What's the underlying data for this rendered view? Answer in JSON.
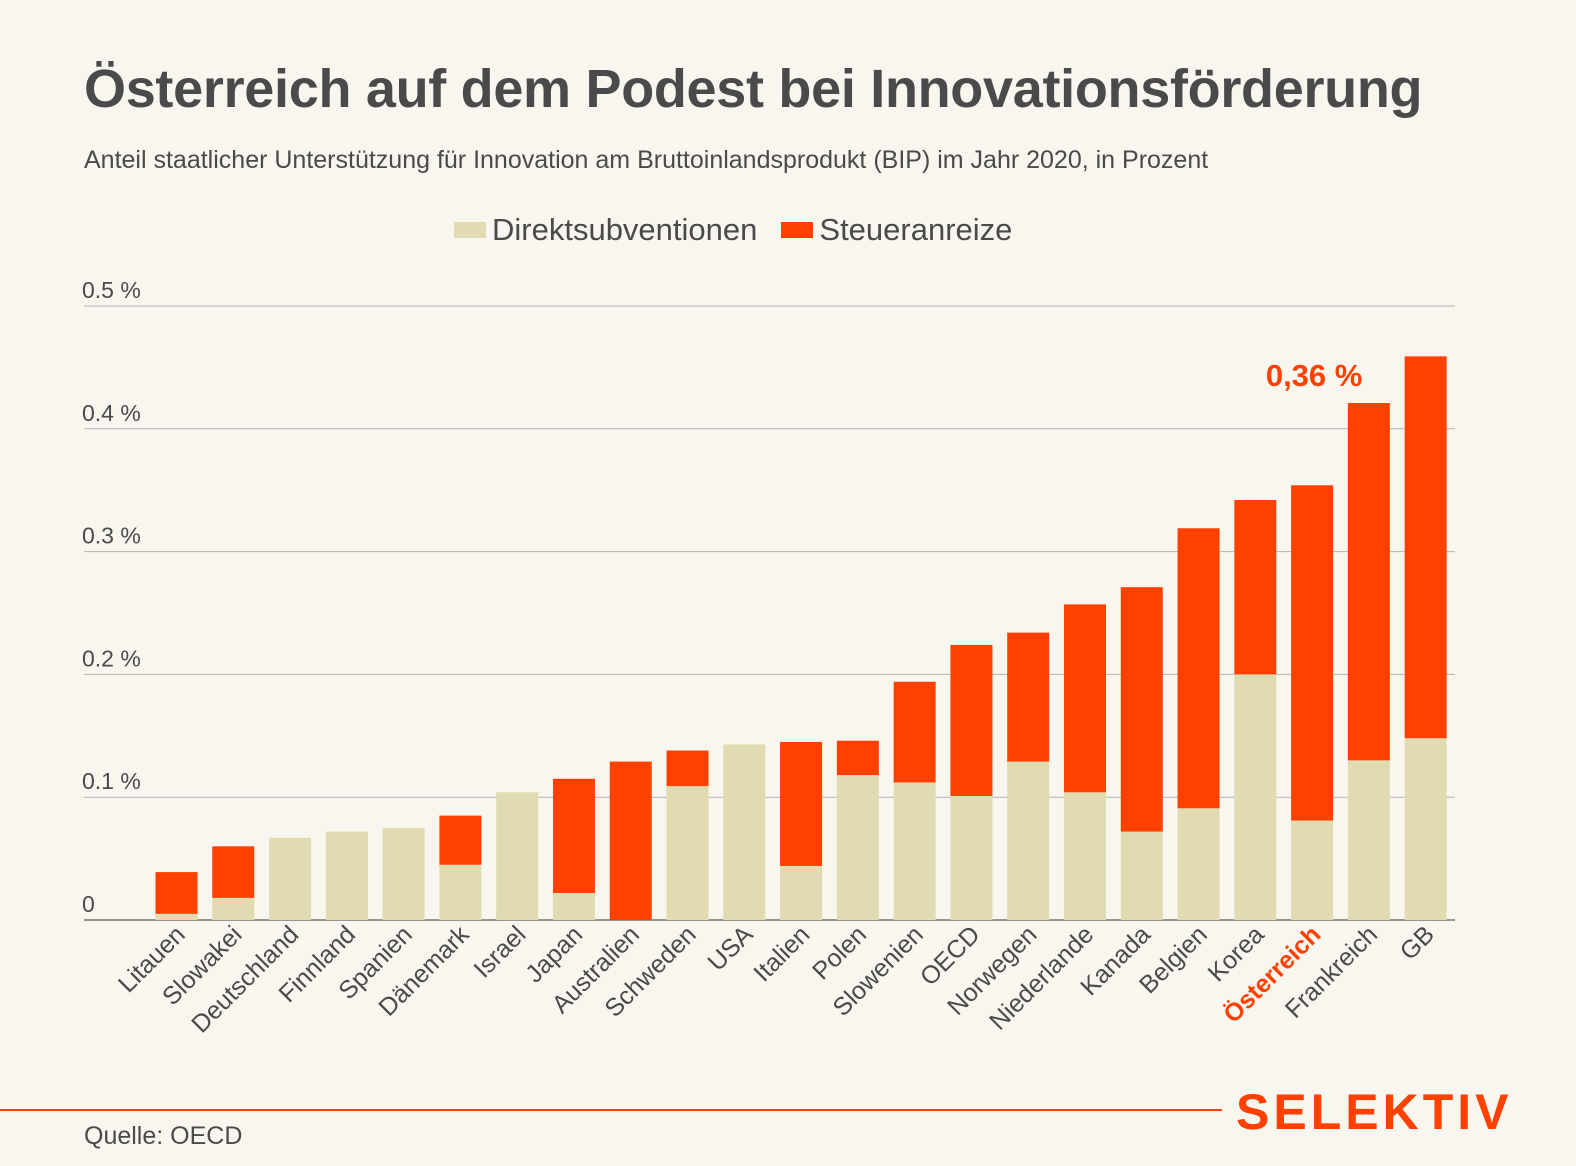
{
  "title": "Österreich auf dem Podest bei Innovationsförderung",
  "subtitle": "Anteil staatlicher Unterstützung für Innovation am Bruttoinlandsprodukt (BIP) im Jahr 2020, in Prozent",
  "source": "Quelle: OECD",
  "brand": "SELEKTIV",
  "colors": {
    "direct": "#e0dbb1",
    "tax": "#fe4000",
    "grid": "#b3b3b3",
    "text": "#4a4a4a",
    "highlight": "#fe4000"
  },
  "chart_data": {
    "type": "bar",
    "stacked": true,
    "categories": [
      "Litauen",
      "Slowakei",
      "Deutschland",
      "Finnland",
      "Spanien",
      "Dänemark",
      "Israel",
      "Japan",
      "Australien",
      "Schweden",
      "USA",
      "Italien",
      "Polen",
      "Slowenien",
      "OECD",
      "Norwegen",
      "Niederlande",
      "Kanada",
      "Belgien",
      "Korea",
      "Österreich",
      "Frankreich",
      "GB"
    ],
    "series": [
      {
        "name": "Direktsubventionen",
        "values": [
          0.005,
          0.018,
          0.067,
          0.072,
          0.075,
          0.045,
          0.104,
          0.022,
          0,
          0.109,
          0.143,
          0.044,
          0.118,
          0.112,
          0.101,
          0.129,
          0.104,
          0.072,
          0.091,
          0.2,
          0.081,
          0.13,
          0.148
        ]
      },
      {
        "name": "Steueranreize",
        "values": [
          0.034,
          0.042,
          0,
          0,
          0,
          0.04,
          0,
          0.093,
          0.129,
          0.029,
          0,
          0.101,
          0.028,
          0.082,
          0.123,
          0.105,
          0.153,
          0.199,
          0.228,
          0.142,
          0.273,
          0.291,
          0.311
        ]
      }
    ],
    "y_ticks": [
      0,
      0.1,
      0.2,
      0.3,
      0.4,
      0.5
    ],
    "y_tick_labels": [
      "0",
      "0.1 %",
      "0.2 %",
      "0.3 %",
      "0.4 %",
      "0.5 %"
    ],
    "ylim": [
      0,
      0.5
    ],
    "grid": true,
    "legend": "top-center",
    "highlight_category": "Österreich",
    "annotation": {
      "category": "Österreich",
      "text": "0,36 %"
    }
  }
}
